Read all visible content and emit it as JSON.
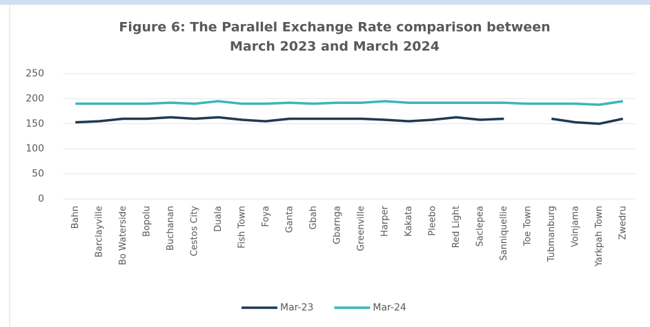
{
  "chart_data": {
    "type": "line",
    "title": [
      "Figure 6: The Parallel Exchange Rate comparison between",
      "March 2023 and March 2024"
    ],
    "categories": [
      "Bahn",
      "Barclayville",
      "Bo Waterside",
      "Bopolu",
      "Buchanan",
      "Cestos City",
      "Duala",
      "Fish Town",
      "Foya",
      "Ganta",
      "Gbah",
      "Gbarnga",
      "Greenville",
      "Harper",
      "Kakata",
      "Pleebo",
      "Red Light",
      "Saclepea",
      "Sanniquellie",
      "Toe Town",
      "Tubmanburg",
      "Voinjama",
      "Yarkpah Town",
      "Zwedru"
    ],
    "series": [
      {
        "name": "Mar-23",
        "color": "#1f3a52",
        "values": [
          153,
          155,
          160,
          160,
          163,
          160,
          163,
          158,
          155,
          160,
          160,
          160,
          160,
          158,
          155,
          158,
          163,
          158,
          160,
          null,
          160,
          153,
          150,
          160
        ]
      },
      {
        "name": "Mar-24",
        "color": "#3ab5bd",
        "values": [
          190,
          190,
          190,
          190,
          192,
          190,
          195,
          190,
          190,
          192,
          190,
          192,
          192,
          195,
          192,
          192,
          192,
          192,
          192,
          190,
          190,
          190,
          188,
          195
        ]
      }
    ],
    "ylim": [
      0,
      250
    ],
    "yticks": [
      0,
      50,
      100,
      150,
      200,
      250
    ],
    "grid": true,
    "legend": "bottom"
  }
}
